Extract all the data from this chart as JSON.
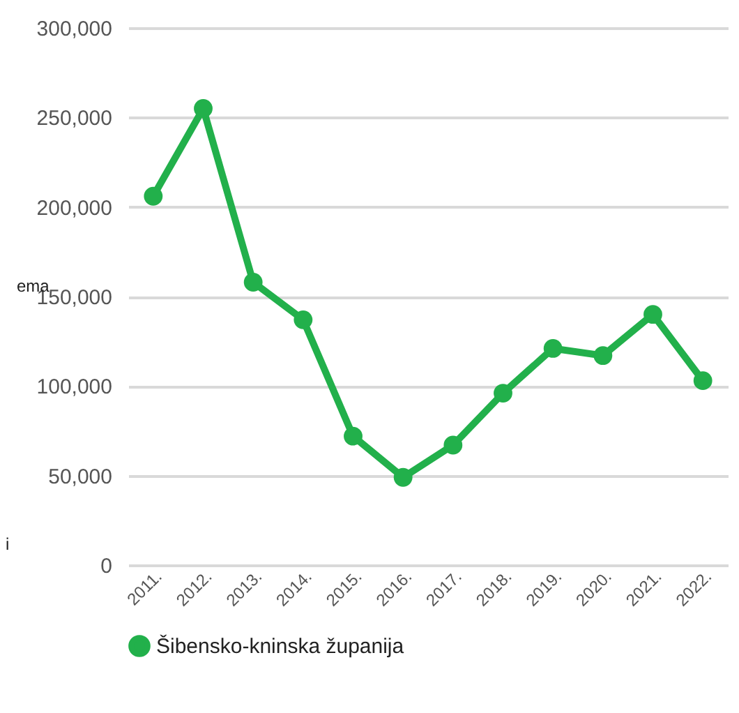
{
  "chart_data": {
    "type": "line",
    "categories": [
      "2011.",
      "2012.",
      "2013.",
      "2014.",
      "2015.",
      "2016.",
      "2017.",
      "2018.",
      "2019.",
      "2020.",
      "2021.",
      "2022."
    ],
    "series": [
      {
        "name": "Šibensko-kninska županija",
        "color": "#22b04b",
        "values": [
          206000,
          255000,
          158000,
          137000,
          72000,
          49000,
          67000,
          96000,
          121000,
          117000,
          140000,
          103000
        ]
      }
    ],
    "ylim": [
      0,
      300000
    ],
    "yticks": [
      {
        "value": 0,
        "label": "0"
      },
      {
        "value": 50000,
        "label": "50,000"
      },
      {
        "value": 100000,
        "label": "100,000"
      },
      {
        "value": 150000,
        "label": "150,000"
      },
      {
        "value": 200000,
        "label": "200,000"
      },
      {
        "value": 250000,
        "label": "250,000"
      },
      {
        "value": 300000,
        "label": "300,000"
      }
    ],
    "grid": "y",
    "legend": "bottom",
    "marker": "circle",
    "line_style": "solid",
    "annotations": [
      "ema",
      "i"
    ]
  }
}
